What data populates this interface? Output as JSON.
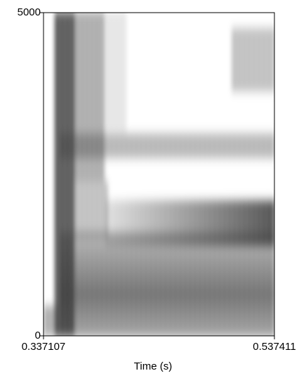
{
  "chart_data": {
    "type": "spectrogram",
    "x_label": "Time (s)",
    "xlim": [
      0.337107,
      0.537411
    ],
    "xticks": [
      0.337107,
      0.537411
    ],
    "ylim": [
      0,
      5000
    ],
    "yticks": [
      0,
      5000
    ]
  }
}
